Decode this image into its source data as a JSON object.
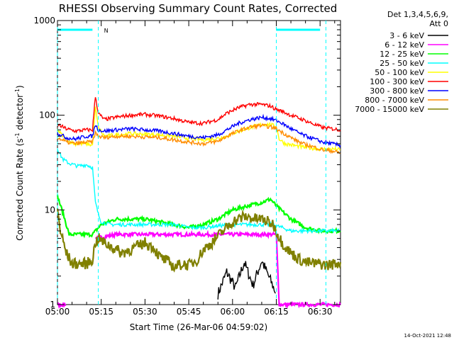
{
  "chart_data": {
    "type": "line",
    "title": "RHESSI Observing Summary Count Rates, Corrected",
    "xlabel": "Start Time (26-Mar-06 04:59:02)",
    "ylabel_main": "Corrected Count Rate (s",
    "ylabel_sup1": "-1",
    "ylabel_mid": " detector",
    "ylabel_sup2": "-1",
    "ylabel_end": ")",
    "y_scale": "log",
    "ylim": [
      1,
      1000
    ],
    "xlim": [
      "05:00",
      "06:37"
    ],
    "x_ticks": [
      "05:00",
      "05:15",
      "05:30",
      "05:45",
      "06:00",
      "06:15",
      "06:30"
    ],
    "x_tick_minutes": [
      0,
      15,
      30,
      45,
      60,
      75,
      90
    ],
    "y_ticks": [
      {
        "label": "1",
        "value": 1
      },
      {
        "label": "10",
        "value": 10
      },
      {
        "label": "100",
        "value": 100
      },
      {
        "label": "1000",
        "value": 1000
      }
    ],
    "legend_header": [
      "Det 1,3,4,5,6,9,",
      "Att 0"
    ],
    "legend_placement": "right",
    "series": [
      {
        "name": "3 - 6 keV",
        "color": "#000000",
        "x": [
          0,
          10,
          20,
          30,
          40,
          50,
          55,
          58,
          61,
          64,
          67,
          70,
          73,
          75,
          80,
          90,
          97
        ],
        "y": [
          null,
          null,
          null,
          null,
          null,
          null,
          1.3,
          2.2,
          1.5,
          2.8,
          1.6,
          2.9,
          1.8,
          1.3,
          null,
          null,
          null
        ]
      },
      {
        "name": "6 - 12 keV",
        "color": "#ff00ff",
        "x": [
          0,
          3,
          4,
          12,
          13,
          20,
          30,
          40,
          50,
          60,
          70,
          73,
          75,
          76,
          97
        ],
        "y": [
          1,
          1,
          null,
          null,
          5,
          5.5,
          5.5,
          5.5,
          5.5,
          5.5,
          5.5,
          5.5,
          5.5,
          1,
          1
        ]
      },
      {
        "name": "12 - 25 keV",
        "color": "#00ff00",
        "x": [
          0,
          2,
          4,
          8,
          10,
          12,
          15,
          20,
          30,
          40,
          45,
          50,
          55,
          60,
          65,
          70,
          73,
          75,
          80,
          85,
          90,
          95,
          97
        ],
        "y": [
          14,
          9,
          5.5,
          5.5,
          5.5,
          5.5,
          7,
          8,
          8,
          7,
          6.5,
          7,
          8,
          10,
          11,
          12,
          13,
          11,
          8,
          6.5,
          6,
          6,
          6
        ]
      },
      {
        "name": "25 - 50 keV",
        "color": "#00ffff",
        "x": [
          0,
          1,
          2,
          4,
          7,
          10,
          12,
          13,
          14,
          15,
          18,
          22,
          27,
          31,
          35,
          40,
          45,
          50,
          55,
          60,
          65,
          70,
          72,
          74,
          75,
          77,
          80,
          85,
          90,
          95,
          97
        ],
        "y": [
          45,
          38,
          34,
          31,
          29,
          30,
          28,
          12,
          9,
          7.5,
          7,
          7,
          7,
          7,
          7,
          7,
          6.5,
          6.5,
          6.8,
          7,
          7,
          7,
          7,
          7,
          6.8,
          6.5,
          6,
          6,
          6,
          6,
          6
        ]
      },
      {
        "name": "50 - 100 keV",
        "color": "#ffff00",
        "x": [
          0,
          3,
          6,
          10,
          12,
          13,
          14,
          16,
          20,
          25,
          30,
          35,
          40,
          45,
          50,
          55,
          58,
          62,
          66,
          70,
          73,
          75,
          76,
          78,
          81,
          84,
          87,
          90,
          93,
          95,
          97
        ],
        "y": [
          70,
          55,
          50,
          50,
          48,
          120,
          75,
          60,
          62,
          64,
          63,
          62,
          60,
          57,
          55,
          57,
          60,
          68,
          74,
          80,
          80,
          75,
          56,
          50,
          48,
          46,
          45,
          44,
          44,
          44,
          43
        ]
      },
      {
        "name": "100 - 300 keV",
        "color": "#ff0000",
        "x": [
          0,
          3,
          6,
          10,
          12,
          13,
          14,
          16,
          20,
          25,
          30,
          35,
          40,
          45,
          50,
          55,
          58,
          62,
          66,
          70,
          73,
          75,
          77,
          80,
          84,
          88,
          91,
          94,
          97
        ],
        "y": [
          80,
          72,
          68,
          70,
          70,
          160,
          105,
          90,
          95,
          100,
          102,
          98,
          92,
          84,
          82,
          90,
          105,
          120,
          130,
          130,
          125,
          115,
          110,
          100,
          90,
          80,
          74,
          72,
          70
        ]
      },
      {
        "name": "300 - 800 keV",
        "color": "#0000ff",
        "x": [
          0,
          3,
          6,
          10,
          12,
          13,
          14,
          16,
          20,
          25,
          30,
          35,
          40,
          45,
          50,
          55,
          58,
          62,
          66,
          70,
          73,
          75,
          77,
          80,
          84,
          88,
          91,
          94,
          97
        ],
        "y": [
          65,
          58,
          56,
          60,
          60,
          80,
          70,
          68,
          70,
          72,
          70,
          68,
          64,
          60,
          58,
          62,
          70,
          82,
          90,
          95,
          92,
          88,
          82,
          72,
          62,
          56,
          52,
          50,
          48
        ]
      },
      {
        "name": "800 - 7000 keV",
        "color": "#ff8c00",
        "x": [
          0,
          3,
          6,
          10,
          12,
          13,
          14,
          16,
          20,
          25,
          30,
          35,
          40,
          45,
          50,
          55,
          58,
          62,
          66,
          70,
          73,
          75,
          77,
          80,
          84,
          88,
          91,
          94,
          97
        ],
        "y": [
          58,
          52,
          50,
          52,
          52,
          65,
          60,
          58,
          60,
          60,
          59,
          58,
          55,
          52,
          50,
          53,
          60,
          68,
          75,
          78,
          75,
          72,
          66,
          58,
          50,
          46,
          43,
          42,
          40
        ]
      },
      {
        "name": "7000 - 15000 keV",
        "color": "#808000",
        "x": [
          0,
          1,
          3,
          5,
          8,
          10,
          12,
          13,
          14,
          16,
          19,
          22,
          25,
          28,
          30,
          33,
          35,
          38,
          40,
          43,
          45,
          48,
          50,
          53,
          55,
          58,
          60,
          62,
          64,
          66,
          68,
          70,
          72,
          74,
          75,
          77,
          80,
          83,
          85,
          88,
          90,
          92,
          95,
          97
        ],
        "y": [
          10,
          6,
          3.5,
          2.7,
          2.7,
          2.7,
          3,
          4.5,
          5,
          4.5,
          4,
          3.5,
          3.8,
          4.2,
          4.5,
          4,
          3.2,
          2.8,
          2.5,
          2.7,
          2.6,
          3,
          3.8,
          4.5,
          5.3,
          6.5,
          7.5,
          8,
          8.5,
          8.3,
          8,
          8,
          7.5,
          7,
          6,
          4.5,
          3.5,
          3,
          2.8,
          2.7,
          2.7,
          2.6,
          2.7,
          2.8
        ]
      }
    ],
    "attenuator_line": {
      "y": 800,
      "segments": [
        [
          0,
          12
        ],
        [
          75,
          90
        ]
      ],
      "label": "N"
    },
    "dashed_markers_minutes": [
      0,
      14,
      75,
      92
    ]
  },
  "footer_timestamp": "14-Oct-2021 12:48"
}
